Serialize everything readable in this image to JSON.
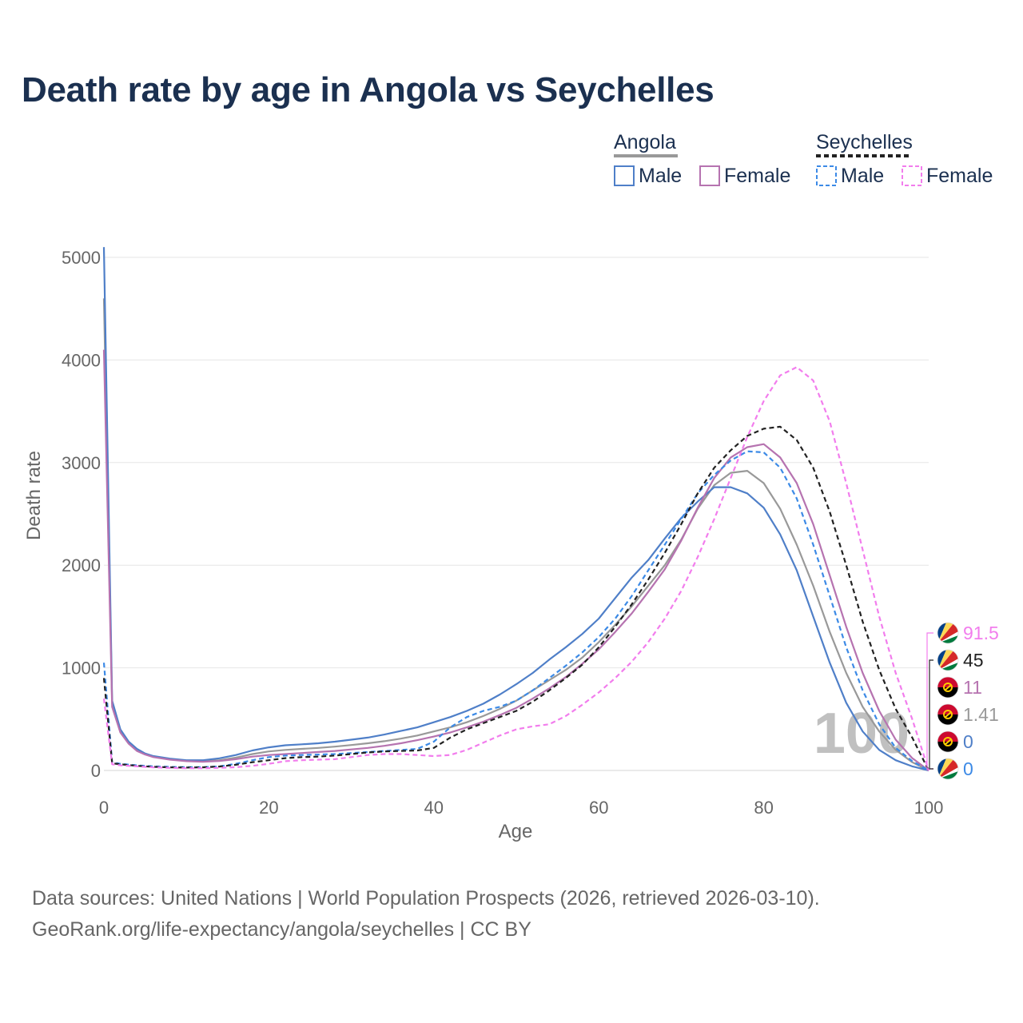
{
  "title": "Death rate by age in Angola vs Seychelles",
  "footer": {
    "line1": "Data sources: United Nations | World Population Prospects (2026, retrieved 2026-03-10).",
    "line2": "GeoRank.org/life-expectancy/angola/seychelles | CC BY"
  },
  "legend": {
    "groups": [
      {
        "label": "Angola",
        "style": "solid",
        "color": "#999999",
        "items": [
          {
            "label": "Male",
            "color": "#4f7fc8"
          },
          {
            "label": "Female",
            "color": "#b673b0"
          }
        ]
      },
      {
        "label": "Seychelles",
        "style": "dashed",
        "color": "#222222",
        "items": [
          {
            "label": "Male",
            "color": "#3c8ae6"
          },
          {
            "label": "Female",
            "color": "#f27ded"
          }
        ]
      }
    ]
  },
  "watermark": "100",
  "end_labels": [
    {
      "value": "91.5",
      "color": "#f27ded",
      "flag": "seychelles"
    },
    {
      "value": "45",
      "color": "#222222",
      "flag": "seychelles"
    },
    {
      "value": "11",
      "color": "#b673b0",
      "flag": "angola"
    },
    {
      "value": "1.41",
      "color": "#999999",
      "flag": "angola"
    },
    {
      "value": "0",
      "color": "#4f7fc8",
      "flag": "angola"
    },
    {
      "value": "0",
      "color": "#3c8ae6",
      "flag": "seychelles"
    }
  ],
  "chart_data": {
    "type": "line",
    "title": "Death rate by age in Angola vs Seychelles",
    "xlabel": "Age",
    "ylabel": "Death rate",
    "xlim": [
      0,
      100
    ],
    "ylim": [
      0,
      5000
    ],
    "xticks": [
      0,
      20,
      40,
      60,
      80,
      100
    ],
    "yticks": [
      0,
      1000,
      2000,
      3000,
      4000,
      5000
    ],
    "grid": true,
    "series": [
      {
        "name": "Angola Total",
        "color": "#999999",
        "dash": "solid",
        "x": [
          0,
          1,
          2,
          3,
          4,
          5,
          6,
          8,
          10,
          12,
          14,
          16,
          18,
          20,
          22,
          24,
          26,
          28,
          30,
          32,
          34,
          36,
          38,
          40,
          42,
          44,
          46,
          48,
          50,
          52,
          54,
          56,
          58,
          60,
          62,
          64,
          66,
          68,
          70,
          72,
          74,
          76,
          78,
          80,
          82,
          84,
          86,
          88,
          90,
          92,
          94,
          96,
          98,
          100
        ],
        "y": [
          4600,
          650,
          390,
          270,
          200,
          160,
          135,
          110,
          95,
          90,
          100,
          125,
          160,
          185,
          200,
          210,
          220,
          232,
          248,
          265,
          285,
          310,
          340,
          380,
          420,
          470,
          530,
          600,
          680,
          780,
          880,
          980,
          1100,
          1250,
          1420,
          1600,
          1800,
          2000,
          2250,
          2550,
          2780,
          2900,
          2920,
          2800,
          2550,
          2200,
          1800,
          1350,
          950,
          620,
          380,
          200,
          80,
          0
        ]
      },
      {
        "name": "Angola Male",
        "color": "#4f7fc8",
        "dash": "solid",
        "x": [
          0,
          1,
          2,
          3,
          4,
          5,
          6,
          8,
          10,
          12,
          14,
          16,
          18,
          20,
          22,
          24,
          26,
          28,
          30,
          32,
          34,
          36,
          38,
          40,
          42,
          44,
          46,
          48,
          50,
          52,
          54,
          56,
          58,
          60,
          62,
          64,
          66,
          68,
          70,
          72,
          74,
          76,
          78,
          80,
          82,
          84,
          86,
          88,
          90,
          92,
          94,
          96,
          98,
          100
        ],
        "y": [
          5100,
          680,
          400,
          280,
          210,
          165,
          140,
          115,
          100,
          100,
          118,
          150,
          195,
          225,
          245,
          255,
          265,
          280,
          300,
          320,
          350,
          385,
          420,
          470,
          520,
          580,
          650,
          740,
          840,
          950,
          1080,
          1200,
          1330,
          1480,
          1680,
          1880,
          2050,
          2260,
          2460,
          2620,
          2760,
          2760,
          2700,
          2560,
          2300,
          1950,
          1500,
          1050,
          660,
          380,
          200,
          100,
          40,
          0
        ]
      },
      {
        "name": "Angola Female",
        "color": "#b673b0",
        "dash": "solid",
        "x": [
          0,
          1,
          2,
          3,
          4,
          5,
          6,
          8,
          10,
          12,
          14,
          16,
          18,
          20,
          22,
          24,
          26,
          28,
          30,
          32,
          34,
          36,
          38,
          40,
          42,
          44,
          46,
          48,
          50,
          52,
          54,
          56,
          58,
          60,
          62,
          64,
          66,
          68,
          70,
          72,
          74,
          76,
          78,
          80,
          82,
          84,
          86,
          88,
          90,
          92,
          94,
          96,
          98,
          100
        ],
        "y": [
          4100,
          620,
          370,
          260,
          190,
          155,
          130,
          105,
          90,
          85,
          92,
          110,
          135,
          150,
          160,
          170,
          180,
          190,
          205,
          220,
          240,
          265,
          295,
          330,
          370,
          420,
          475,
          540,
          610,
          700,
          800,
          910,
          1040,
          1180,
          1350,
          1530,
          1740,
          1960,
          2240,
          2560,
          2850,
          3050,
          3150,
          3180,
          3050,
          2800,
          2400,
          1900,
          1400,
          950,
          580,
          300,
          120,
          0
        ]
      },
      {
        "name": "Seychelles Male",
        "color": "#3c8ae6",
        "dash": "dashed",
        "x": [
          0,
          1,
          2,
          4,
          6,
          8,
          10,
          12,
          14,
          16,
          18,
          20,
          22,
          24,
          26,
          28,
          30,
          32,
          34,
          36,
          38,
          40,
          42,
          44,
          46,
          48,
          50,
          52,
          54,
          56,
          58,
          60,
          62,
          64,
          66,
          68,
          70,
          72,
          74,
          76,
          78,
          80,
          82,
          84,
          86,
          88,
          90,
          92,
          94,
          96,
          98,
          100
        ],
        "y": [
          1050,
          80,
          65,
          50,
          40,
          35,
          32,
          32,
          40,
          65,
          100,
          130,
          145,
          150,
          155,
          160,
          170,
          180,
          190,
          200,
          210,
          280,
          420,
          520,
          580,
          620,
          680,
          780,
          900,
          1020,
          1150,
          1300,
          1480,
          1700,
          1950,
          2200,
          2450,
          2700,
          2880,
          3020,
          3110,
          3100,
          2950,
          2650,
          2200,
          1700,
          1200,
          780,
          450,
          220,
          90,
          0
        ]
      },
      {
        "name": "Seychelles Total",
        "color": "#222222",
        "dash": "dashed",
        "x": [
          0,
          1,
          2,
          4,
          6,
          8,
          10,
          12,
          14,
          16,
          18,
          20,
          22,
          24,
          26,
          28,
          30,
          32,
          34,
          36,
          38,
          40,
          42,
          44,
          46,
          48,
          50,
          52,
          54,
          56,
          58,
          60,
          62,
          64,
          66,
          68,
          70,
          72,
          74,
          76,
          78,
          80,
          82,
          84,
          86,
          88,
          90,
          92,
          94,
          96,
          98,
          100
        ],
        "y": [
          900,
          70,
          60,
          45,
          35,
          30,
          28,
          30,
          38,
          55,
          80,
          100,
          120,
          130,
          135,
          145,
          160,
          175,
          185,
          190,
          195,
          220,
          320,
          400,
          460,
          520,
          580,
          670,
          780,
          900,
          1030,
          1200,
          1400,
          1620,
          1860,
          2120,
          2400,
          2700,
          2950,
          3120,
          3260,
          3330,
          3350,
          3220,
          2950,
          2520,
          2000,
          1450,
          980,
          600,
          320,
          0
        ]
      },
      {
        "name": "Seychelles Female",
        "color": "#f27ded",
        "dash": "dashed",
        "x": [
          0,
          1,
          2,
          4,
          6,
          8,
          10,
          12,
          14,
          16,
          18,
          20,
          22,
          24,
          26,
          28,
          30,
          32,
          34,
          36,
          38,
          40,
          42,
          44,
          46,
          48,
          50,
          52,
          54,
          56,
          58,
          60,
          62,
          64,
          66,
          68,
          70,
          72,
          74,
          76,
          78,
          80,
          82,
          84,
          86,
          88,
          90,
          92,
          94,
          96,
          98,
          100
        ],
        "y": [
          700,
          60,
          50,
          40,
          30,
          25,
          22,
          22,
          25,
          32,
          45,
          65,
          90,
          100,
          105,
          110,
          130,
          150,
          160,
          160,
          150,
          140,
          150,
          200,
          270,
          340,
          400,
          430,
          450,
          530,
          640,
          760,
          900,
          1060,
          1250,
          1480,
          1750,
          2080,
          2450,
          2850,
          3250,
          3600,
          3850,
          3930,
          3800,
          3400,
          2800,
          2150,
          1500,
          950,
          500,
          0
        ]
      }
    ]
  }
}
